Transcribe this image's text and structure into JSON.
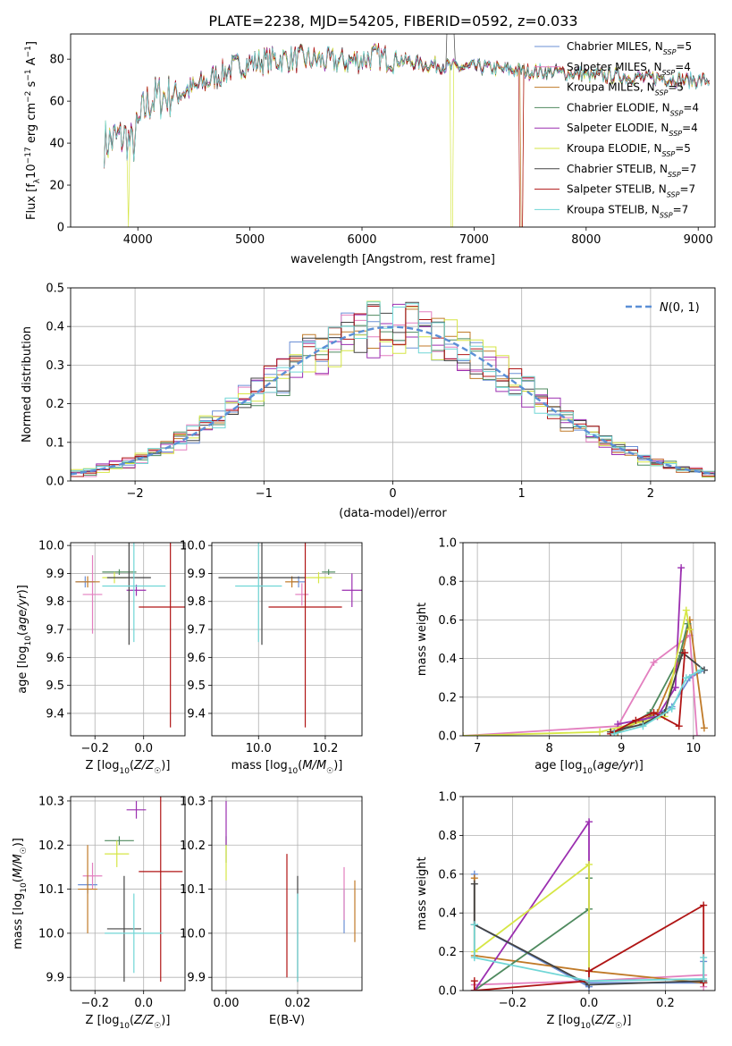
{
  "figure": {
    "title": "PLATE=2238, MJD=54205, FIBERID=0592, z=0.033"
  },
  "models": [
    {
      "name": "Chabrier MILES",
      "nssp": "5",
      "color": "#6b8fd6"
    },
    {
      "name": "Salpeter MILES",
      "nssp": "4",
      "color": "#e37fbf"
    },
    {
      "name": "Kroupa MILES",
      "nssp": "5",
      "color": "#c07a28"
    },
    {
      "name": "Chabrier ELODIE",
      "nssp": "4",
      "color": "#4f8a5f"
    },
    {
      "name": "Salpeter ELODIE",
      "nssp": "4",
      "color": "#9b2fb0"
    },
    {
      "name": "Kroupa ELODIE",
      "nssp": "5",
      "color": "#d6e645"
    },
    {
      "name": "Chabrier STELIB",
      "nssp": "7",
      "color": "#444444"
    },
    {
      "name": "Salpeter STELIB",
      "nssp": "7",
      "color": "#b01515"
    },
    {
      "name": "Kroupa STELIB",
      "nssp": "7",
      "color": "#70d6d6"
    }
  ],
  "chart_data": [
    {
      "id": "spectrum",
      "type": "line",
      "xlabel": "wavelength [Angstrom, rest frame]",
      "ylabel": "Flux [f_λ10^-17 erg cm^-2 s^-1 A^-1]",
      "xlim": [
        3400,
        9150
      ],
      "ylim": [
        0,
        92
      ],
      "xticks": [
        4000,
        5000,
        6000,
        7000,
        8000,
        9000
      ],
      "yticks": [
        0,
        20,
        40,
        60,
        80
      ],
      "legend": "top-right",
      "grid": false,
      "continuum": {
        "x": [
          3700,
          3800,
          3900,
          3950,
          4050,
          4100,
          4200,
          4300,
          4500,
          4700,
          4900,
          5100,
          5300,
          5500,
          5700,
          5900,
          6100,
          6300,
          6500,
          6700,
          6900,
          7100,
          7300,
          7500,
          7700,
          7900,
          8100,
          8300,
          8500,
          8700,
          8900,
          9100
        ],
        "y": [
          40,
          42,
          43,
          38,
          55,
          60,
          62,
          63,
          66,
          72,
          77,
          79,
          80,
          80,
          79,
          79,
          81,
          80,
          78,
          77,
          76,
          76,
          75,
          74,
          74,
          73,
          72,
          72,
          71,
          71,
          70,
          70
        ]
      }
    },
    {
      "id": "residuals",
      "type": "histogram",
      "xlabel": "(data-model)/error",
      "ylabel": "Normed distribution",
      "xlim": [
        -2.5,
        2.5
      ],
      "ylim": [
        0,
        0.5
      ],
      "xticks": [
        -2,
        -1,
        0,
        1,
        2
      ],
      "yticks": [
        0.0,
        0.1,
        0.2,
        0.3,
        0.4,
        0.5
      ],
      "legend": "top-right",
      "legend_label": "N(0,1)",
      "grid": true,
      "bin_width": 0.1
    },
    {
      "id": "age-vs-Z",
      "type": "scatter",
      "xlabel": "Z [log10(Z/Z☉)]",
      "ylabel": "age  [log10(age/yr)]",
      "xlim": [
        -0.3,
        0.17
      ],
      "ylim": [
        9.32,
        10.01
      ],
      "xticks": [
        -0.2,
        0.0
      ],
      "yticks": [
        9.4,
        9.5,
        9.6,
        9.7,
        9.8,
        9.9,
        10.0
      ],
      "grid": true,
      "points": [
        {
          "x": -0.24,
          "y": 9.87,
          "xerr": 0.04,
          "yerr": 0.02
        },
        {
          "x": -0.21,
          "y": 9.825,
          "xerr": 0.04,
          "yerr": 0.14
        },
        {
          "x": -0.23,
          "y": 9.87,
          "xerr": 0.05,
          "yerr": 0.02
        },
        {
          "x": -0.1,
          "y": 9.905,
          "xerr": 0.07,
          "yerr": 0.01
        },
        {
          "x": -0.03,
          "y": 9.84,
          "xerr": 0.04,
          "yerr": 0.02
        },
        {
          "x": -0.12,
          "y": 9.885,
          "xerr": 0.05,
          "yerr": 0.02
        },
        {
          "x": -0.06,
          "y": 9.885,
          "xerr": 0.09,
          "yerr": 0.24
        },
        {
          "x": 0.11,
          "y": 9.78,
          "xerr": 0.13,
          "yerr": 0.43
        },
        {
          "x": -0.04,
          "y": 9.855,
          "xerr": 0.13,
          "yerr": 0.2
        }
      ]
    },
    {
      "id": "age-vs-mass",
      "type": "scatter",
      "xlabel": "mass [log10(M/M☉)]",
      "ylabel": "",
      "xlim": [
        9.86,
        10.31
      ],
      "ylim": [
        9.32,
        10.01
      ],
      "xticks": [
        10.0,
        10.2
      ],
      "yticks": [
        9.4,
        9.5,
        9.6,
        9.7,
        9.8,
        9.9,
        10.0
      ],
      "grid": true,
      "points": [
        {
          "x": 10.12,
          "y": 9.87,
          "xerr": 0.02,
          "yerr": 0.02
        },
        {
          "x": 10.13,
          "y": 9.825,
          "xerr": 0.02,
          "yerr": 0.04
        },
        {
          "x": 10.1,
          "y": 9.87,
          "xerr": 0.02,
          "yerr": 0.02
        },
        {
          "x": 10.21,
          "y": 9.905,
          "xerr": 0.02,
          "yerr": 0.01
        },
        {
          "x": 10.28,
          "y": 9.84,
          "xerr": 0.03,
          "yerr": 0.06
        },
        {
          "x": 10.18,
          "y": 9.885,
          "xerr": 0.04,
          "yerr": 0.02
        },
        {
          "x": 10.01,
          "y": 9.885,
          "xerr": 0.13,
          "yerr": 0.24
        },
        {
          "x": 10.14,
          "y": 9.78,
          "xerr": 0.11,
          "yerr": 0.43
        },
        {
          "x": 10.0,
          "y": 9.855,
          "xerr": 0.07,
          "yerr": 0.2
        }
      ]
    },
    {
      "id": "massweight-vs-age",
      "type": "line",
      "xlabel": "age  [log10(age/yr)]",
      "ylabel": "mass weight",
      "xlim": [
        6.8,
        10.3
      ],
      "ylim": [
        0,
        1
      ],
      "xticks": [
        7,
        8,
        9,
        10
      ],
      "yticks": [
        0.0,
        0.2,
        0.4,
        0.6,
        0.8,
        1.0
      ],
      "grid": true,
      "series": [
        {
          "x": [
            8.9,
            9.3,
            9.7,
            9.95,
            10.15
          ],
          "y": [
            0.02,
            0.08,
            0.15,
            0.3,
            0.34
          ]
        },
        {
          "x": [
            6.8,
            8.95,
            9.45,
            9.95,
            10.05
          ],
          "y": [
            0.0,
            0.05,
            0.38,
            0.52,
            0.0
          ]
        },
        {
          "x": [
            8.95,
            9.5,
            9.85,
            9.95,
            10.15
          ],
          "y": [
            0.02,
            0.12,
            0.43,
            0.6,
            0.04
          ]
        },
        {
          "x": [
            8.9,
            9.4,
            9.8,
            9.92
          ],
          "y": [
            0.01,
            0.12,
            0.4,
            0.58
          ]
        },
        {
          "x": [
            8.95,
            9.5,
            9.75,
            9.83
          ],
          "y": [
            0.06,
            0.1,
            0.25,
            0.87
          ]
        },
        {
          "x": [
            6.8,
            8.7,
            9.6,
            9.9,
            9.95
          ],
          "y": [
            0.0,
            0.02,
            0.1,
            0.65,
            0.55
          ]
        },
        {
          "x": [
            8.85,
            9.3,
            9.6,
            9.85,
            10.15
          ],
          "y": [
            0.02,
            0.06,
            0.12,
            0.43,
            0.34
          ]
        },
        {
          "x": [
            8.85,
            9.2,
            9.45,
            9.8,
            9.88
          ],
          "y": [
            0.01,
            0.08,
            0.12,
            0.05,
            0.43
          ]
        },
        {
          "x": [
            8.9,
            9.3,
            9.7,
            9.9,
            10.1
          ],
          "y": [
            0.01,
            0.05,
            0.14,
            0.3,
            0.34
          ]
        }
      ]
    },
    {
      "id": "mass-vs-Z",
      "type": "scatter",
      "xlabel": "Z [log10(Z/Z☉)]",
      "ylabel": "mass [log10(M/M☉)]",
      "xlim": [
        -0.3,
        0.17
      ],
      "ylim": [
        9.87,
        10.31
      ],
      "xticks": [
        -0.2,
        0.0
      ],
      "yticks": [
        9.9,
        10.0,
        10.1,
        10.2,
        10.3
      ],
      "grid": true,
      "points": [
        {
          "x": -0.23,
          "y": 10.11,
          "xerr": 0.04,
          "yerr": 0.02
        },
        {
          "x": -0.21,
          "y": 10.13,
          "xerr": 0.04,
          "yerr": 0.03
        },
        {
          "x": -0.23,
          "y": 10.1,
          "xerr": 0.04,
          "yerr": 0.1
        },
        {
          "x": -0.1,
          "y": 10.21,
          "xerr": 0.06,
          "yerr": 0.01
        },
        {
          "x": -0.03,
          "y": 10.28,
          "xerr": 0.04,
          "yerr": 0.02
        },
        {
          "x": -0.11,
          "y": 10.18,
          "xerr": 0.05,
          "yerr": 0.03
        },
        {
          "x": -0.08,
          "y": 10.01,
          "xerr": 0.07,
          "yerr": 0.12
        },
        {
          "x": 0.07,
          "y": 10.14,
          "xerr": 0.09,
          "yerr": 0.25
        },
        {
          "x": -0.04,
          "y": 10.0,
          "xerr": 0.12,
          "yerr": 0.09
        }
      ]
    },
    {
      "id": "mass-vs-ebv",
      "type": "scatter",
      "xlabel": "E(B-V)",
      "ylabel": "",
      "xlim": [
        -0.004,
        0.038
      ],
      "ylim": [
        9.87,
        10.31
      ],
      "xticks": [
        0.0,
        0.02
      ],
      "yticks": [
        9.9,
        10.0,
        10.1,
        10.2,
        10.3
      ],
      "grid": true,
      "points": [
        {
          "x": 0.033,
          "y": 10.05,
          "xerr": 0.0,
          "yerr": 0.05
        },
        {
          "x": 0.033,
          "y": 10.09,
          "xerr": 0.0,
          "yerr": 0.06
        },
        {
          "x": 0.036,
          "y": 10.05,
          "xerr": 0.0,
          "yerr": 0.07
        },
        {
          "x": 0.0,
          "y": 10.19,
          "xerr": 0.0,
          "yerr": 0.03
        },
        {
          "x": 0.0,
          "y": 10.25,
          "xerr": 0.0,
          "yerr": 0.05
        },
        {
          "x": 0.0,
          "y": 10.16,
          "xerr": 0.0,
          "yerr": 0.04
        },
        {
          "x": 0.02,
          "y": 10.01,
          "xerr": 0.0,
          "yerr": 0.12
        },
        {
          "x": 0.017,
          "y": 10.04,
          "xerr": 0.0,
          "yerr": 0.14
        },
        {
          "x": 0.02,
          "y": 9.99,
          "xerr": 0.0,
          "yerr": 0.1
        }
      ]
    },
    {
      "id": "massweight-vs-Z",
      "type": "line",
      "xlabel": "Z [log10(Z/Z☉)]",
      "ylabel": "mass weight",
      "xlim": [
        -0.33,
        0.33
      ],
      "ylim": [
        0,
        1
      ],
      "xticks": [
        -0.2,
        0.0,
        0.2
      ],
      "yticks": [
        0.0,
        0.2,
        0.4,
        0.6,
        0.8,
        1.0
      ],
      "grid": true,
      "series": [
        {
          "x": [
            -0.3,
            -0.3,
            0.0,
            0.0,
            0.3,
            0.3
          ],
          "y": [
            0.6,
            0.34,
            0.02,
            0.04,
            0.04,
            0.15
          ]
        },
        {
          "x": [
            -0.3,
            0.0,
            0.3,
            0.3
          ],
          "y": [
            0.03,
            0.05,
            0.08,
            0.02
          ]
        },
        {
          "x": [
            -0.3,
            -0.3,
            0.0,
            0.3,
            0.3
          ],
          "y": [
            0.58,
            0.18,
            0.1,
            0.04,
            0.04
          ]
        },
        {
          "x": [
            -0.3,
            0.0,
            0.0
          ],
          "y": [
            0.0,
            0.42,
            0.58
          ]
        },
        {
          "x": [
            -0.3,
            0.0,
            0.0
          ],
          "y": [
            0.0,
            0.87,
            0.1
          ]
        },
        {
          "x": [
            -0.3,
            0.0,
            0.0
          ],
          "y": [
            0.2,
            0.65,
            0.1
          ]
        },
        {
          "x": [
            -0.3,
            -0.3,
            0.0,
            0.3,
            0.3
          ],
          "y": [
            0.55,
            0.34,
            0.03,
            0.05,
            0.04
          ]
        },
        {
          "x": [
            -0.3,
            -0.3,
            0.0,
            0.0,
            0.3,
            0.3
          ],
          "y": [
            0.05,
            0.0,
            0.05,
            0.1,
            0.44,
            0.04
          ]
        },
        {
          "x": [
            -0.3,
            -0.3,
            0.0,
            0.3,
            0.3
          ],
          "y": [
            0.34,
            0.17,
            0.05,
            0.06,
            0.17
          ]
        }
      ]
    }
  ]
}
